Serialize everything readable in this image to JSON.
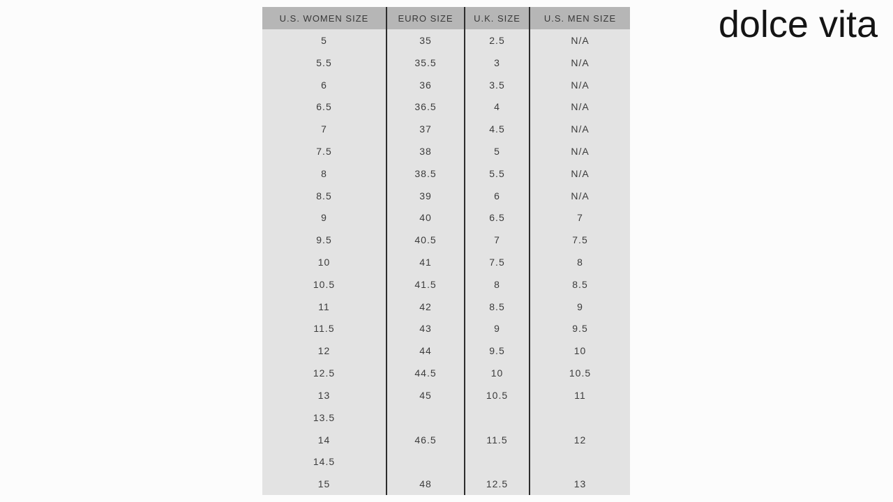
{
  "logo": {
    "text": "dolce vita",
    "color": "#141414"
  },
  "table": {
    "columns": [
      "U.S. WOMEN SIZE",
      "EURO SIZE",
      "U.K. SIZE",
      "U.S. MEN SIZE"
    ],
    "header_bg": "#b6b6b6",
    "body_bg": "#e3e3e3",
    "divider_color": "#2d2d2d",
    "text_color": "#3b3b3b",
    "rows": [
      [
        "5",
        "35",
        "2.5",
        "N/A"
      ],
      [
        "5.5",
        "35.5",
        "3",
        "N/A"
      ],
      [
        "6",
        "36",
        "3.5",
        "N/A"
      ],
      [
        "6.5",
        "36.5",
        "4",
        "N/A"
      ],
      [
        "7",
        "37",
        "4.5",
        "N/A"
      ],
      [
        "7.5",
        "38",
        "5",
        "N/A"
      ],
      [
        "8",
        "38.5",
        "5.5",
        "N/A"
      ],
      [
        "8.5",
        "39",
        "6",
        "N/A"
      ],
      [
        "9",
        "40",
        "6.5",
        "7"
      ],
      [
        "9.5",
        "40.5",
        "7",
        "7.5"
      ],
      [
        "10",
        "41",
        "7.5",
        "8"
      ],
      [
        "10.5",
        "41.5",
        "8",
        "8.5"
      ],
      [
        "11",
        "42",
        "8.5",
        "9"
      ],
      [
        "11.5",
        "43",
        "9",
        "9.5"
      ],
      [
        "12",
        "44",
        "9.5",
        "10"
      ],
      [
        "12.5",
        "44.5",
        "10",
        "10.5"
      ],
      [
        "13",
        "45",
        "10.5",
        "11"
      ],
      [
        "13.5",
        "",
        "",
        ""
      ],
      [
        "14",
        "46.5",
        "11.5",
        "12"
      ],
      [
        "14.5",
        "",
        "",
        ""
      ],
      [
        "15",
        "48",
        "12.5",
        "13"
      ]
    ]
  }
}
